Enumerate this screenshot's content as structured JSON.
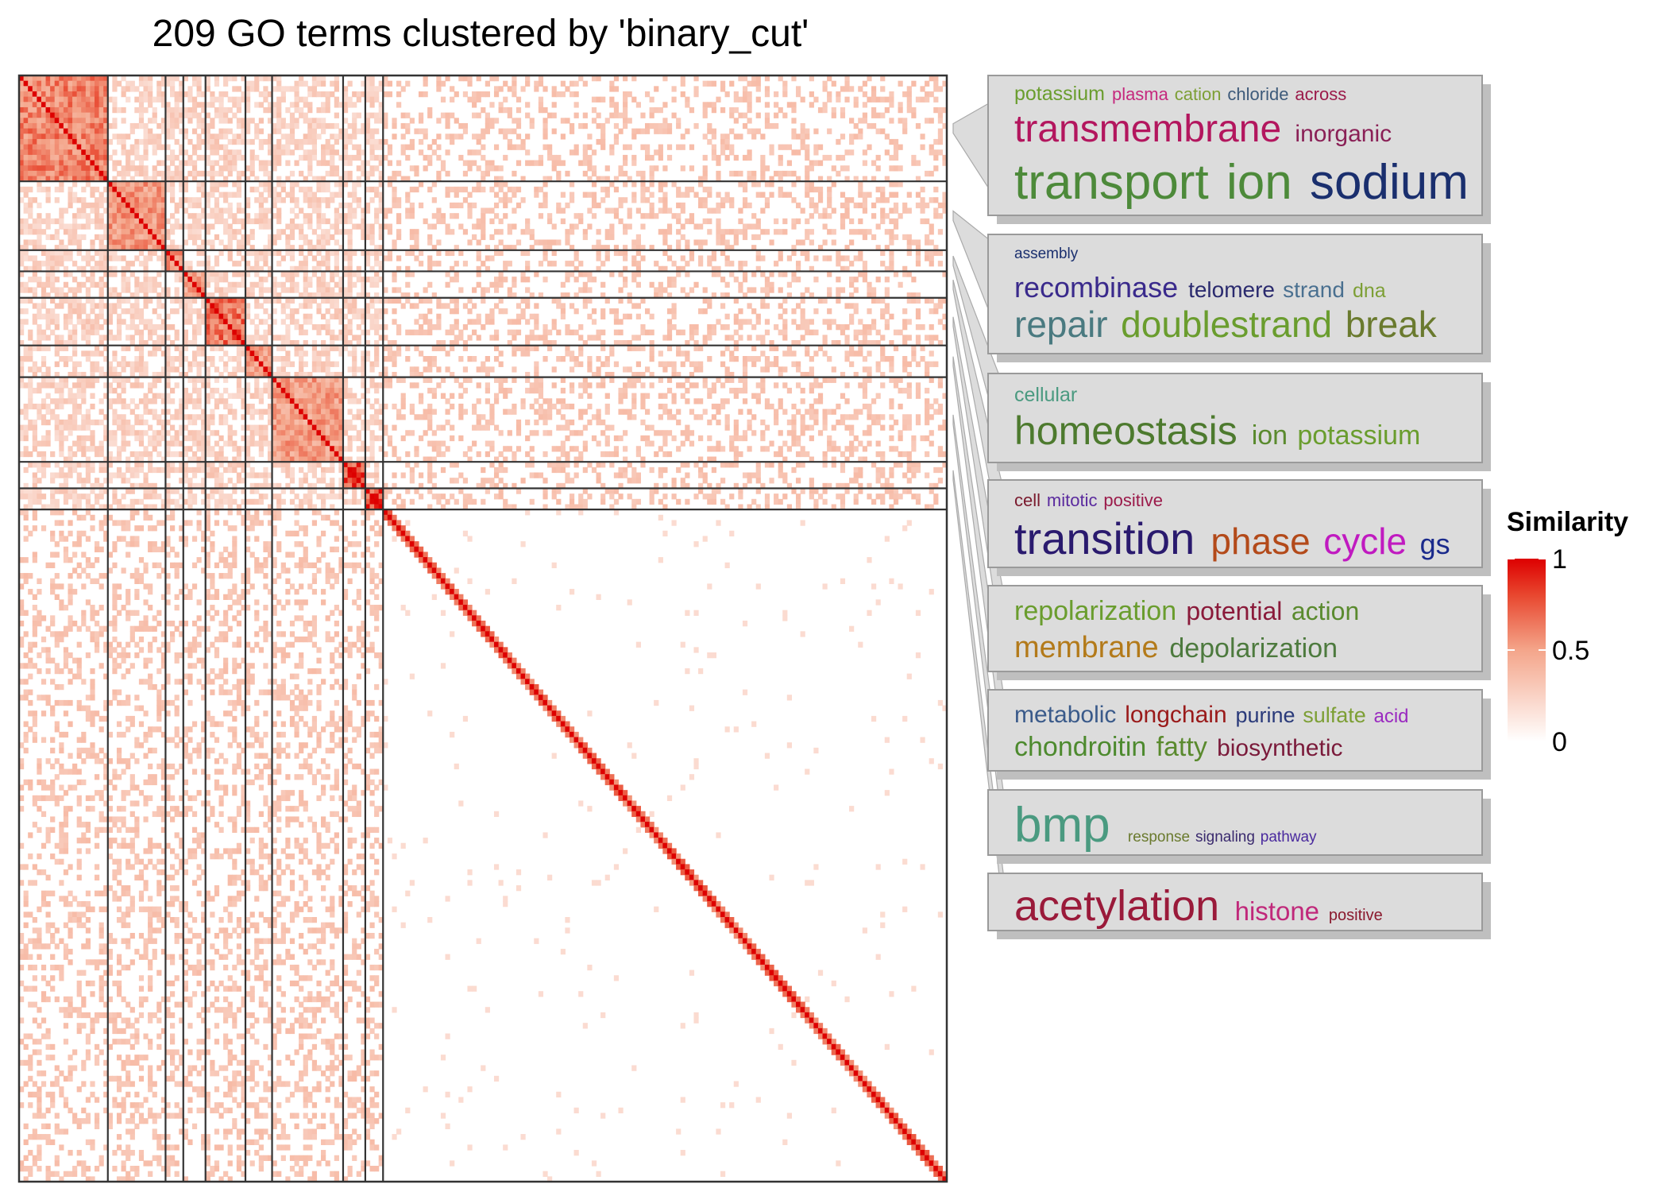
{
  "chart_data": {
    "type": "heatmap",
    "title": "209 GO terms clustered by 'binary_cut'",
    "n_terms": 209,
    "cluster_sizes": [
      20,
      13,
      4,
      5,
      9,
      6,
      16,
      5,
      4,
      127
    ],
    "block_strength": [
      0.7,
      0.62,
      0.62,
      0.58,
      0.78,
      0.62,
      0.6,
      0.92,
      0.9,
      0.0
    ],
    "legend": {
      "title": "Similarity",
      "ticks": [
        "1",
        "0.5",
        "0"
      ],
      "tick_values": [
        1,
        0.5,
        0
      ],
      "colors": [
        "#ffffff",
        "#f4a58a",
        "#e8472f",
        "#dd0000"
      ]
    },
    "clusters": [
      {
        "words": [
          {
            "text": "potassium",
            "color": "#6a9d2e",
            "size": 25,
            "line": 0
          },
          {
            "text": "plasma",
            "color": "#c5287d",
            "size": 22,
            "line": 0
          },
          {
            "text": "cation",
            "color": "#7d9f35",
            "size": 22,
            "line": 0
          },
          {
            "text": "chloride",
            "color": "#3d5a7a",
            "size": 22,
            "line": 0
          },
          {
            "text": "across",
            "color": "#9b1a4a",
            "size": 22,
            "line": 0
          },
          {
            "text": "transmembrane",
            "color": "#b3165e",
            "size": 48,
            "line": 1
          },
          {
            "text": "inorganic",
            "color": "#8a2056",
            "size": 30,
            "line": 1
          },
          {
            "text": "transport",
            "color": "#4d8a3a",
            "size": 62,
            "line": 2
          },
          {
            "text": "ion",
            "color": "#4d8a3a",
            "size": 62,
            "line": 2
          },
          {
            "text": "sodium",
            "color": "#1a2f6e",
            "size": 62,
            "line": 2
          }
        ]
      },
      {
        "words": [
          {
            "text": "assembly",
            "color": "#1a2f6e",
            "size": 19,
            "line": 0
          },
          {
            "text": "recombinase",
            "color": "#3a2a8c",
            "size": 36,
            "line": 1
          },
          {
            "text": "telomere",
            "color": "#2a2a6e",
            "size": 28,
            "line": 1
          },
          {
            "text": "strand",
            "color": "#4a7090",
            "size": 28,
            "line": 1
          },
          {
            "text": "dna",
            "color": "#7d9f35",
            "size": 25,
            "line": 1
          },
          {
            "text": "repair",
            "color": "#4a7a80",
            "size": 46,
            "line": 2
          },
          {
            "text": "doublestrand",
            "color": "#6a9d2e",
            "size": 46,
            "line": 2
          },
          {
            "text": "break",
            "color": "#6a7a2e",
            "size": 46,
            "line": 2
          }
        ]
      },
      {
        "words": [
          {
            "text": "cellular",
            "color": "#4a9a80",
            "size": 25,
            "line": 0
          },
          {
            "text": "homeostasis",
            "color": "#4d7a2e",
            "size": 50,
            "line": 1
          },
          {
            "text": "ion",
            "color": "#5a8a2e",
            "size": 34,
            "line": 1
          },
          {
            "text": "potassium",
            "color": "#6a9d2e",
            "size": 34,
            "line": 1
          }
        ]
      },
      {
        "words": [
          {
            "text": "cell",
            "color": "#7a1a2e",
            "size": 22,
            "line": 0
          },
          {
            "text": "mitotic",
            "color": "#5a2a9e",
            "size": 22,
            "line": 0
          },
          {
            "text": "positive",
            "color": "#9b1a4a",
            "size": 22,
            "line": 0
          },
          {
            "text": "transition",
            "color": "#2a1a6e",
            "size": 56,
            "line": 1
          },
          {
            "text": "phase",
            "color": "#b34a1a",
            "size": 46,
            "line": 1
          },
          {
            "text": "cycle",
            "color": "#c01ac0",
            "size": 46,
            "line": 1
          },
          {
            "text": "gs",
            "color": "#1a2a8c",
            "size": 36,
            "line": 1
          }
        ]
      },
      {
        "words": [
          {
            "text": "repolarization",
            "color": "#6a9d2e",
            "size": 34,
            "line": 0
          },
          {
            "text": "potential",
            "color": "#8a1a3a",
            "size": 32,
            "line": 0
          },
          {
            "text": "action",
            "color": "#5a8a2e",
            "size": 32,
            "line": 0
          },
          {
            "text": "membrane",
            "color": "#b37a1a",
            "size": 38,
            "line": 1
          },
          {
            "text": "depolarization",
            "color": "#4d7a3e",
            "size": 34,
            "line": 1
          }
        ]
      },
      {
        "words": [
          {
            "text": "metabolic",
            "color": "#3a5a8a",
            "size": 30,
            "line": 0
          },
          {
            "text": "longchain",
            "color": "#9a1a1a",
            "size": 30,
            "line": 0
          },
          {
            "text": "purine",
            "color": "#2a3a7a",
            "size": 27,
            "line": 0
          },
          {
            "text": "sulfate",
            "color": "#7d9f35",
            "size": 27,
            "line": 0
          },
          {
            "text": "acid",
            "color": "#9a2ac0",
            "size": 24,
            "line": 0
          },
          {
            "text": "chondroitin",
            "color": "#4d8a2e",
            "size": 34,
            "line": 1
          },
          {
            "text": "fatty",
            "color": "#5a8a2e",
            "size": 34,
            "line": 1
          },
          {
            "text": "biosynthetic",
            "color": "#7a1a3a",
            "size": 30,
            "line": 1
          }
        ]
      },
      {
        "words": [
          {
            "text": "bmp",
            "color": "#4a9a80",
            "size": 62,
            "line": 0
          },
          {
            "text": "response",
            "color": "#6a7a2e",
            "size": 19,
            "line": 0
          },
          {
            "text": "signaling",
            "color": "#3a2a6e",
            "size": 19,
            "line": 0
          },
          {
            "text": "pathway",
            "color": "#4a2a9e",
            "size": 19,
            "line": 0
          }
        ]
      },
      {
        "words": [
          {
            "text": "acetylation",
            "color": "#9a1a3a",
            "size": 54,
            "line": 0
          },
          {
            "text": "histone",
            "color": "#c0287a",
            "size": 33,
            "line": 0
          },
          {
            "text": "positive",
            "color": "#8a1a2e",
            "size": 20,
            "line": 0
          }
        ]
      }
    ]
  }
}
